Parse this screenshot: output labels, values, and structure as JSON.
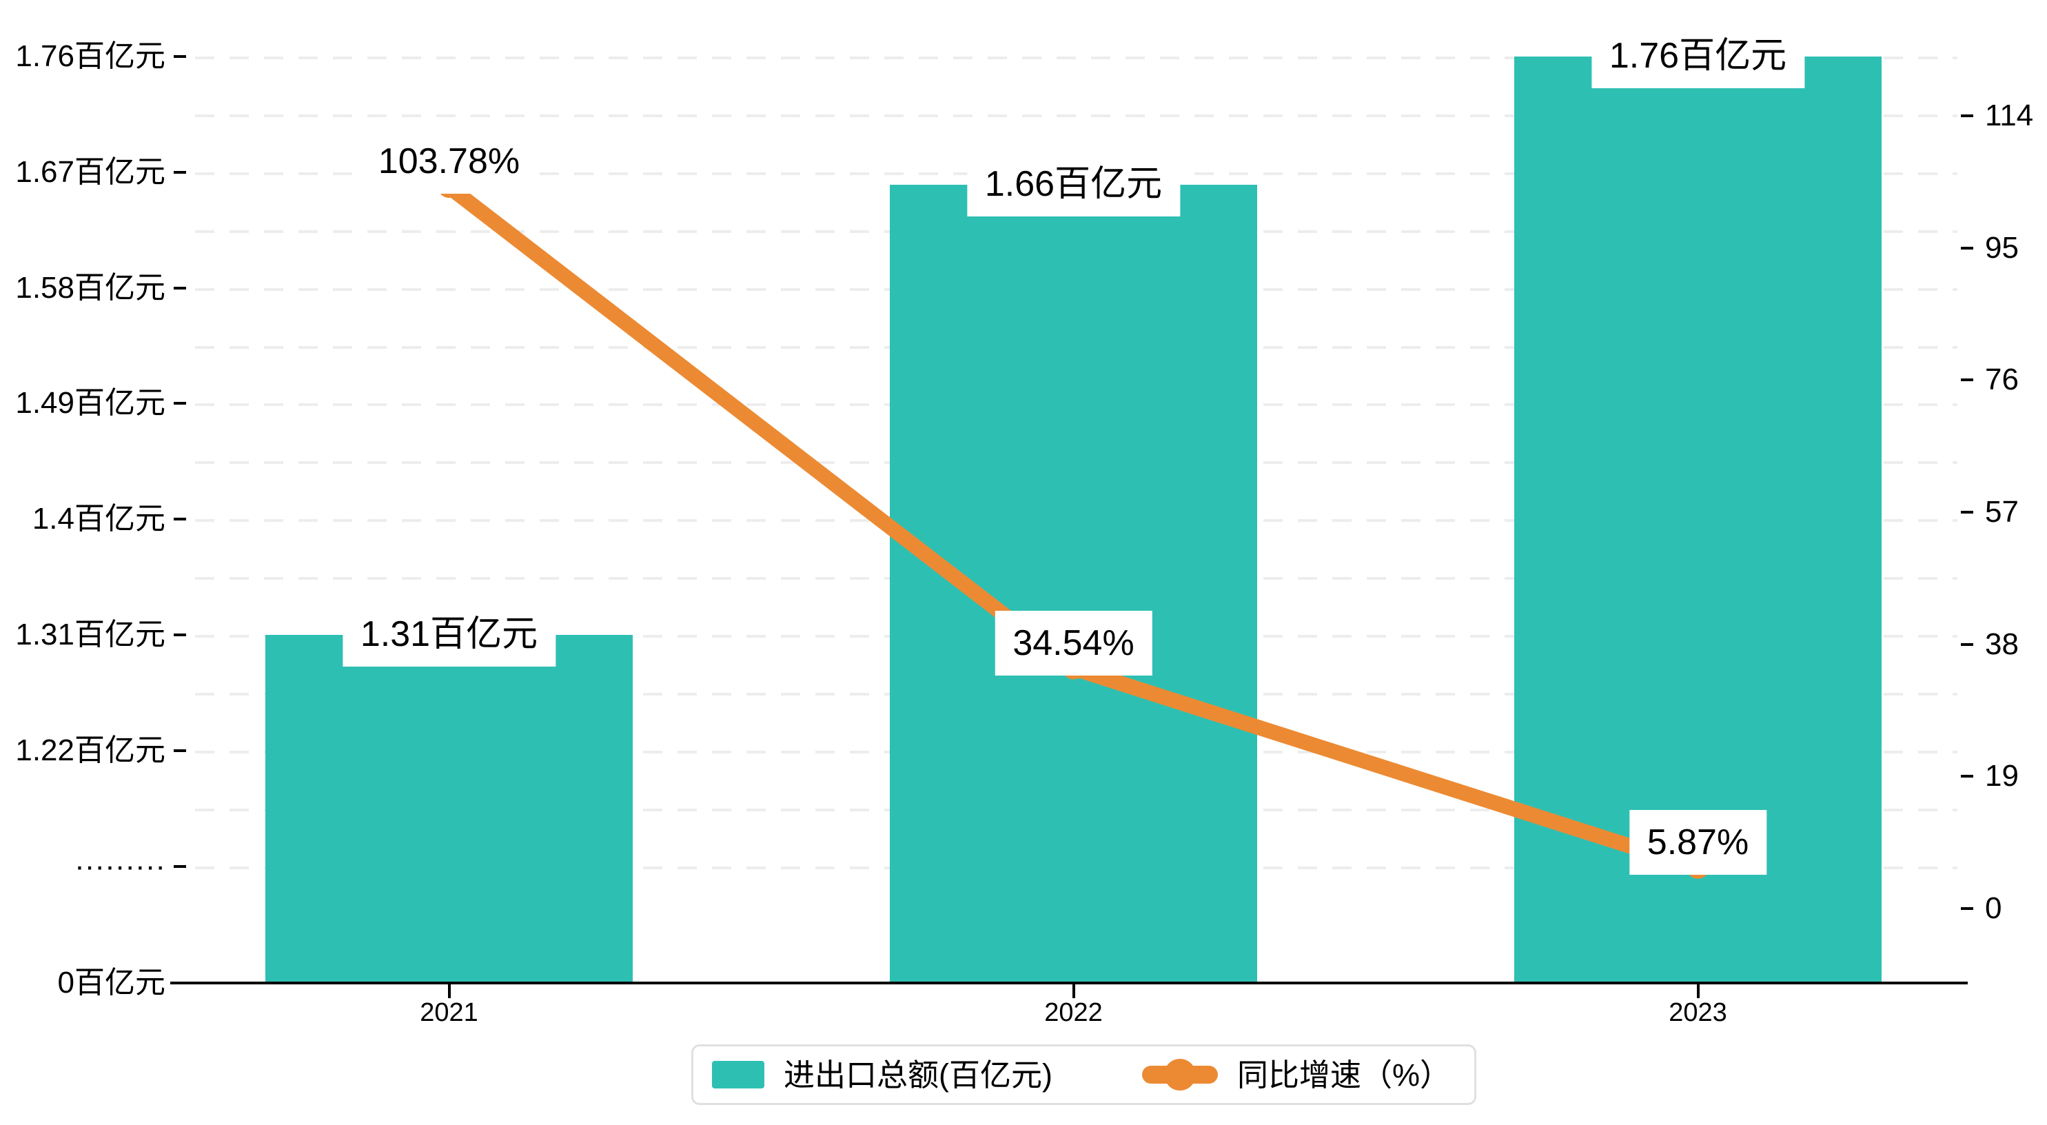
{
  "chart_data": {
    "type": "bar",
    "subtype": "bar-line-combo",
    "categories": [
      "2021",
      "2022",
      "2023"
    ],
    "series": [
      {
        "name": "进出口总额(百亿元)",
        "type": "bar",
        "axis": "left",
        "unit": "百亿元",
        "values": [
          1.31,
          1.66,
          1.76
        ],
        "data_labels": [
          "1.31百亿元",
          "1.66百亿元",
          "1.76百亿元"
        ],
        "color": "#2EBFB3"
      },
      {
        "name": "同比增速（%）",
        "type": "line",
        "axis": "right",
        "unit": "%",
        "values": [
          103.78,
          34.54,
          5.87
        ],
        "data_labels": [
          "103.78%",
          "34.54%",
          "5.87%"
        ],
        "color": "#EC8A33"
      }
    ],
    "left_axis": {
      "tick_labels": [
        "1.76百亿元",
        "1.67百亿元",
        "1.58百亿元",
        "1.49百亿元",
        "1.4百亿元",
        "1.31百亿元",
        "1.22百亿元",
        "·········",
        "0百亿元"
      ],
      "tick_values": [
        1.76,
        1.67,
        1.58,
        1.49,
        1.4,
        1.31,
        1.22,
        null,
        0
      ],
      "has_axis_break": true,
      "range_shown": [
        1.22,
        1.76
      ]
    },
    "right_axis": {
      "tick_labels": [
        "114",
        "95",
        "76",
        "57",
        "38",
        "19",
        "0"
      ],
      "tick_values": [
        114,
        95,
        76,
        57,
        38,
        19,
        0
      ],
      "min": 0,
      "max": 114,
      "step": 19
    },
    "grid": {
      "dashed": true,
      "color": "#ededed"
    },
    "legend": {
      "position": "bottom",
      "items": [
        {
          "label": "进出口总额(百亿元)",
          "swatch": "bar",
          "color": "#2EBFB3"
        },
        {
          "label": "同比增速（%）",
          "swatch": "line-dot",
          "color": "#EC8A33"
        }
      ]
    }
  },
  "colors": {
    "bar": "#2EBFB3",
    "line": "#EC8A33",
    "axis": "#000000",
    "grid": "#ededed",
    "legend_border": "#e0e0e0",
    "label_background": "#ffffff",
    "text": "#000000"
  }
}
